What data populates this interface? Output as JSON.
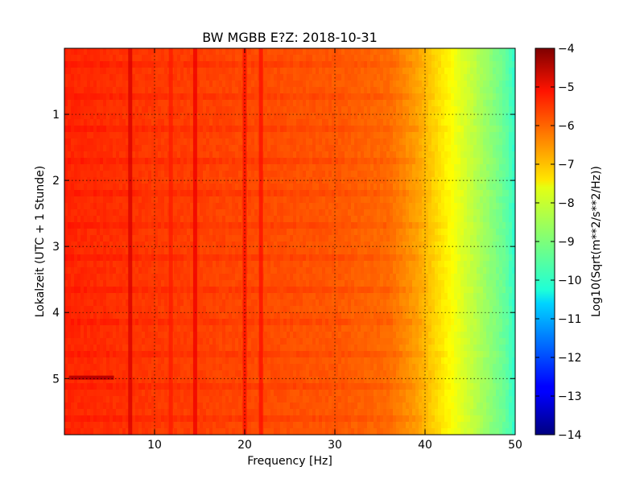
{
  "chart_data": {
    "type": "heatmap",
    "title": "BW MGBB E?Z: 2018-10-31",
    "xlabel": "Frequency [Hz]",
    "ylabel": "Lokalzeit (UTC + 1 Stunde)",
    "xlim": [
      0,
      50
    ],
    "ylim": [
      5.85,
      0
    ],
    "x_ticks": [
      10,
      20,
      30,
      40,
      50
    ],
    "x_tick_labels": [
      "10",
      "20",
      "30",
      "40",
      "50"
    ],
    "y_ticks": [
      1,
      2,
      3,
      4,
      5
    ],
    "y_tick_labels": [
      "1",
      "2",
      "3",
      "4",
      "5"
    ],
    "grid": true,
    "colormap": "jet",
    "colorbar": {
      "label": "Log10(Sqrt(m**2/s**2/Hz))",
      "range": [
        -14,
        -4
      ],
      "ticks": [
        -4,
        -5,
        -6,
        -7,
        -8,
        -9,
        -10,
        -11,
        -12,
        -13,
        -14
      ],
      "tick_labels": [
        "−4",
        "−5",
        "−6",
        "−7",
        "−8",
        "−9",
        "−10",
        "−11",
        "−12",
        "−13",
        "−14"
      ]
    },
    "spectrum_profile": {
      "frequency_hz": [
        0,
        5,
        10,
        20,
        30,
        36,
        39,
        41,
        43,
        45,
        47,
        49,
        50
      ],
      "level": [
        -5.6,
        -5.7,
        -5.8,
        -5.95,
        -6.1,
        -6.3,
        -6.8,
        -7.3,
        -7.8,
        -8.3,
        -8.8,
        -9.3,
        -9.8
      ]
    },
    "line_features": [
      {
        "frequency_hz": 7.3,
        "level": -4.9
      },
      {
        "frequency_hz": 14.5,
        "level": -5.1
      },
      {
        "frequency_hz": 20.0,
        "level": -5.4
      },
      {
        "frequency_hz": 21.8,
        "level": -5.4
      },
      {
        "frequency_hz": 11.8,
        "level": -5.5
      }
    ],
    "event": {
      "time_h": 4.98,
      "frequency_hz": [
        0.5,
        5.5
      ],
      "level": -4.6
    }
  }
}
